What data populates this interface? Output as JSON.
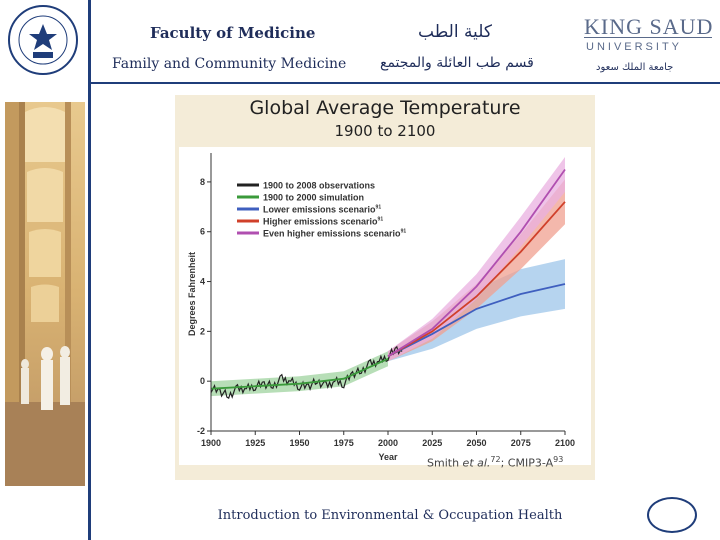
{
  "header": {
    "faculty_en": "Faculty of Medicine",
    "department_en": "Family and Community Medicine",
    "faculty_ar": "كلية الطب",
    "department_ar": "قسم طب العائلة والمجتمع",
    "university_logo_text": [
      "KING SAUD",
      "UNIVERSITY"
    ],
    "university_ar": "جامعة الملك سعود"
  },
  "footer": {
    "course_title": "Introduction to Environmental & Occupation Health"
  },
  "citation": {
    "author": "Smith",
    "et_al": "et al.",
    "ref1": "72",
    "sep": "; CMIP3-A",
    "ref2": "93"
  },
  "colors": {
    "brand_blue": "#1f3d7a",
    "panel_bg": "#f4ecd8"
  },
  "chart_data": {
    "type": "line",
    "title": "Global Average Temperature",
    "subtitle": "1900 to 2100",
    "xlabel": "Year",
    "ylabel": "Degrees Fahrenheit",
    "xlim": [
      1900,
      2100
    ],
    "ylim": [
      -2,
      9
    ],
    "xticks": [
      1900,
      1925,
      1950,
      1975,
      2000,
      2025,
      2050,
      2075,
      2100
    ],
    "yticks": [
      -2,
      0,
      2,
      4,
      6,
      8
    ],
    "legend_position": "top-left",
    "series": [
      {
        "name": "1900 to 2008 observations",
        "color": "#222222",
        "x": [
          1900,
          1905,
          1910,
          1915,
          1920,
          1925,
          1930,
          1935,
          1940,
          1945,
          1950,
          1955,
          1960,
          1965,
          1970,
          1975,
          1980,
          1985,
          1990,
          1995,
          2000,
          2005,
          2008
        ],
        "y": [
          -0.3,
          -0.4,
          -0.6,
          -0.3,
          -0.3,
          -0.2,
          -0.1,
          -0.2,
          0.1,
          0.0,
          -0.2,
          -0.2,
          0.0,
          -0.2,
          0.0,
          -0.1,
          0.3,
          0.4,
          0.7,
          0.8,
          1.0,
          1.3,
          1.2
        ]
      },
      {
        "name": "1900 to 2000 simulation",
        "color": "#3a9a3a",
        "x": [
          1900,
          1925,
          1950,
          1975,
          2000
        ],
        "y": [
          -0.3,
          -0.2,
          -0.1,
          0.1,
          0.9
        ]
      },
      {
        "name": "Lower emissions scenario",
        "superscript": "91",
        "color": "#3f5fbf",
        "x": [
          2000,
          2025,
          2050,
          2075,
          2100
        ],
        "y": [
          1.0,
          1.9,
          2.9,
          3.5,
          3.9
        ]
      },
      {
        "name": "Higher emissions scenario",
        "superscript": "91",
        "color": "#d0402a",
        "x": [
          2000,
          2025,
          2050,
          2075,
          2100
        ],
        "y": [
          1.0,
          2.0,
          3.4,
          5.2,
          7.2
        ]
      },
      {
        "name": "Even higher emissions scenario",
        "superscript": "91",
        "color": "#b04fb0",
        "x": [
          2000,
          2025,
          2050,
          2075,
          2100
        ],
        "y": [
          1.0,
          2.1,
          3.8,
          6.0,
          8.5
        ]
      }
    ],
    "bands": [
      {
        "series": "Lower emissions scenario",
        "color": "#9ec6ea",
        "x": [
          2000,
          2025,
          2050,
          2075,
          2100
        ],
        "lo": [
          0.8,
          1.3,
          2.1,
          2.6,
          2.9
        ],
        "hi": [
          1.2,
          2.4,
          3.7,
          4.5,
          4.9
        ]
      },
      {
        "series": "Higher emissions scenario",
        "color": "#f0a090",
        "x": [
          2000,
          2025,
          2050,
          2075,
          2100
        ],
        "lo": [
          0.8,
          1.6,
          2.9,
          4.5,
          6.3
        ],
        "hi": [
          1.2,
          2.4,
          3.9,
          5.9,
          8.1
        ]
      },
      {
        "series": "Even higher emissions scenario",
        "color": "#e9b0e0",
        "x": [
          2000,
          2025,
          2050,
          2075,
          2100
        ],
        "lo": [
          0.8,
          1.7,
          3.3,
          5.4,
          7.6
        ],
        "hi": [
          1.2,
          2.5,
          4.3,
          6.6,
          9.0
        ]
      },
      {
        "series": "1900 to 2000 simulation",
        "color": "#9fd39f",
        "x": [
          1900,
          1925,
          1950,
          1975,
          2000
        ],
        "lo": [
          -0.6,
          -0.5,
          -0.4,
          -0.2,
          0.6
        ],
        "hi": [
          0.0,
          0.1,
          0.2,
          0.4,
          1.2
        ]
      }
    ]
  }
}
